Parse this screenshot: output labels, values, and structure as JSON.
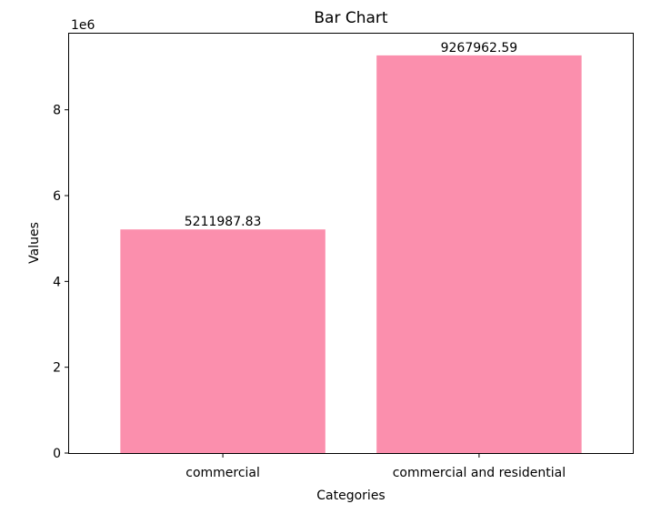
{
  "chart_data": {
    "type": "bar",
    "title": "Bar Chart",
    "xlabel": "Categories",
    "ylabel": "Values",
    "y_offset_label": "1e6",
    "categories": [
      "commercial",
      "commercial and residential"
    ],
    "values": [
      5211987.83,
      9267962.59
    ],
    "data_labels": [
      "5211987.83",
      "9267962.59"
    ],
    "ylim": [
      0,
      9774461.4
    ],
    "yticks": [
      0,
      2000000,
      4000000,
      6000000,
      8000000
    ],
    "ytick_labels": [
      "0",
      "2",
      "4",
      "6",
      "8"
    ],
    "bar_color": "#fb8fad",
    "grid": false
  }
}
